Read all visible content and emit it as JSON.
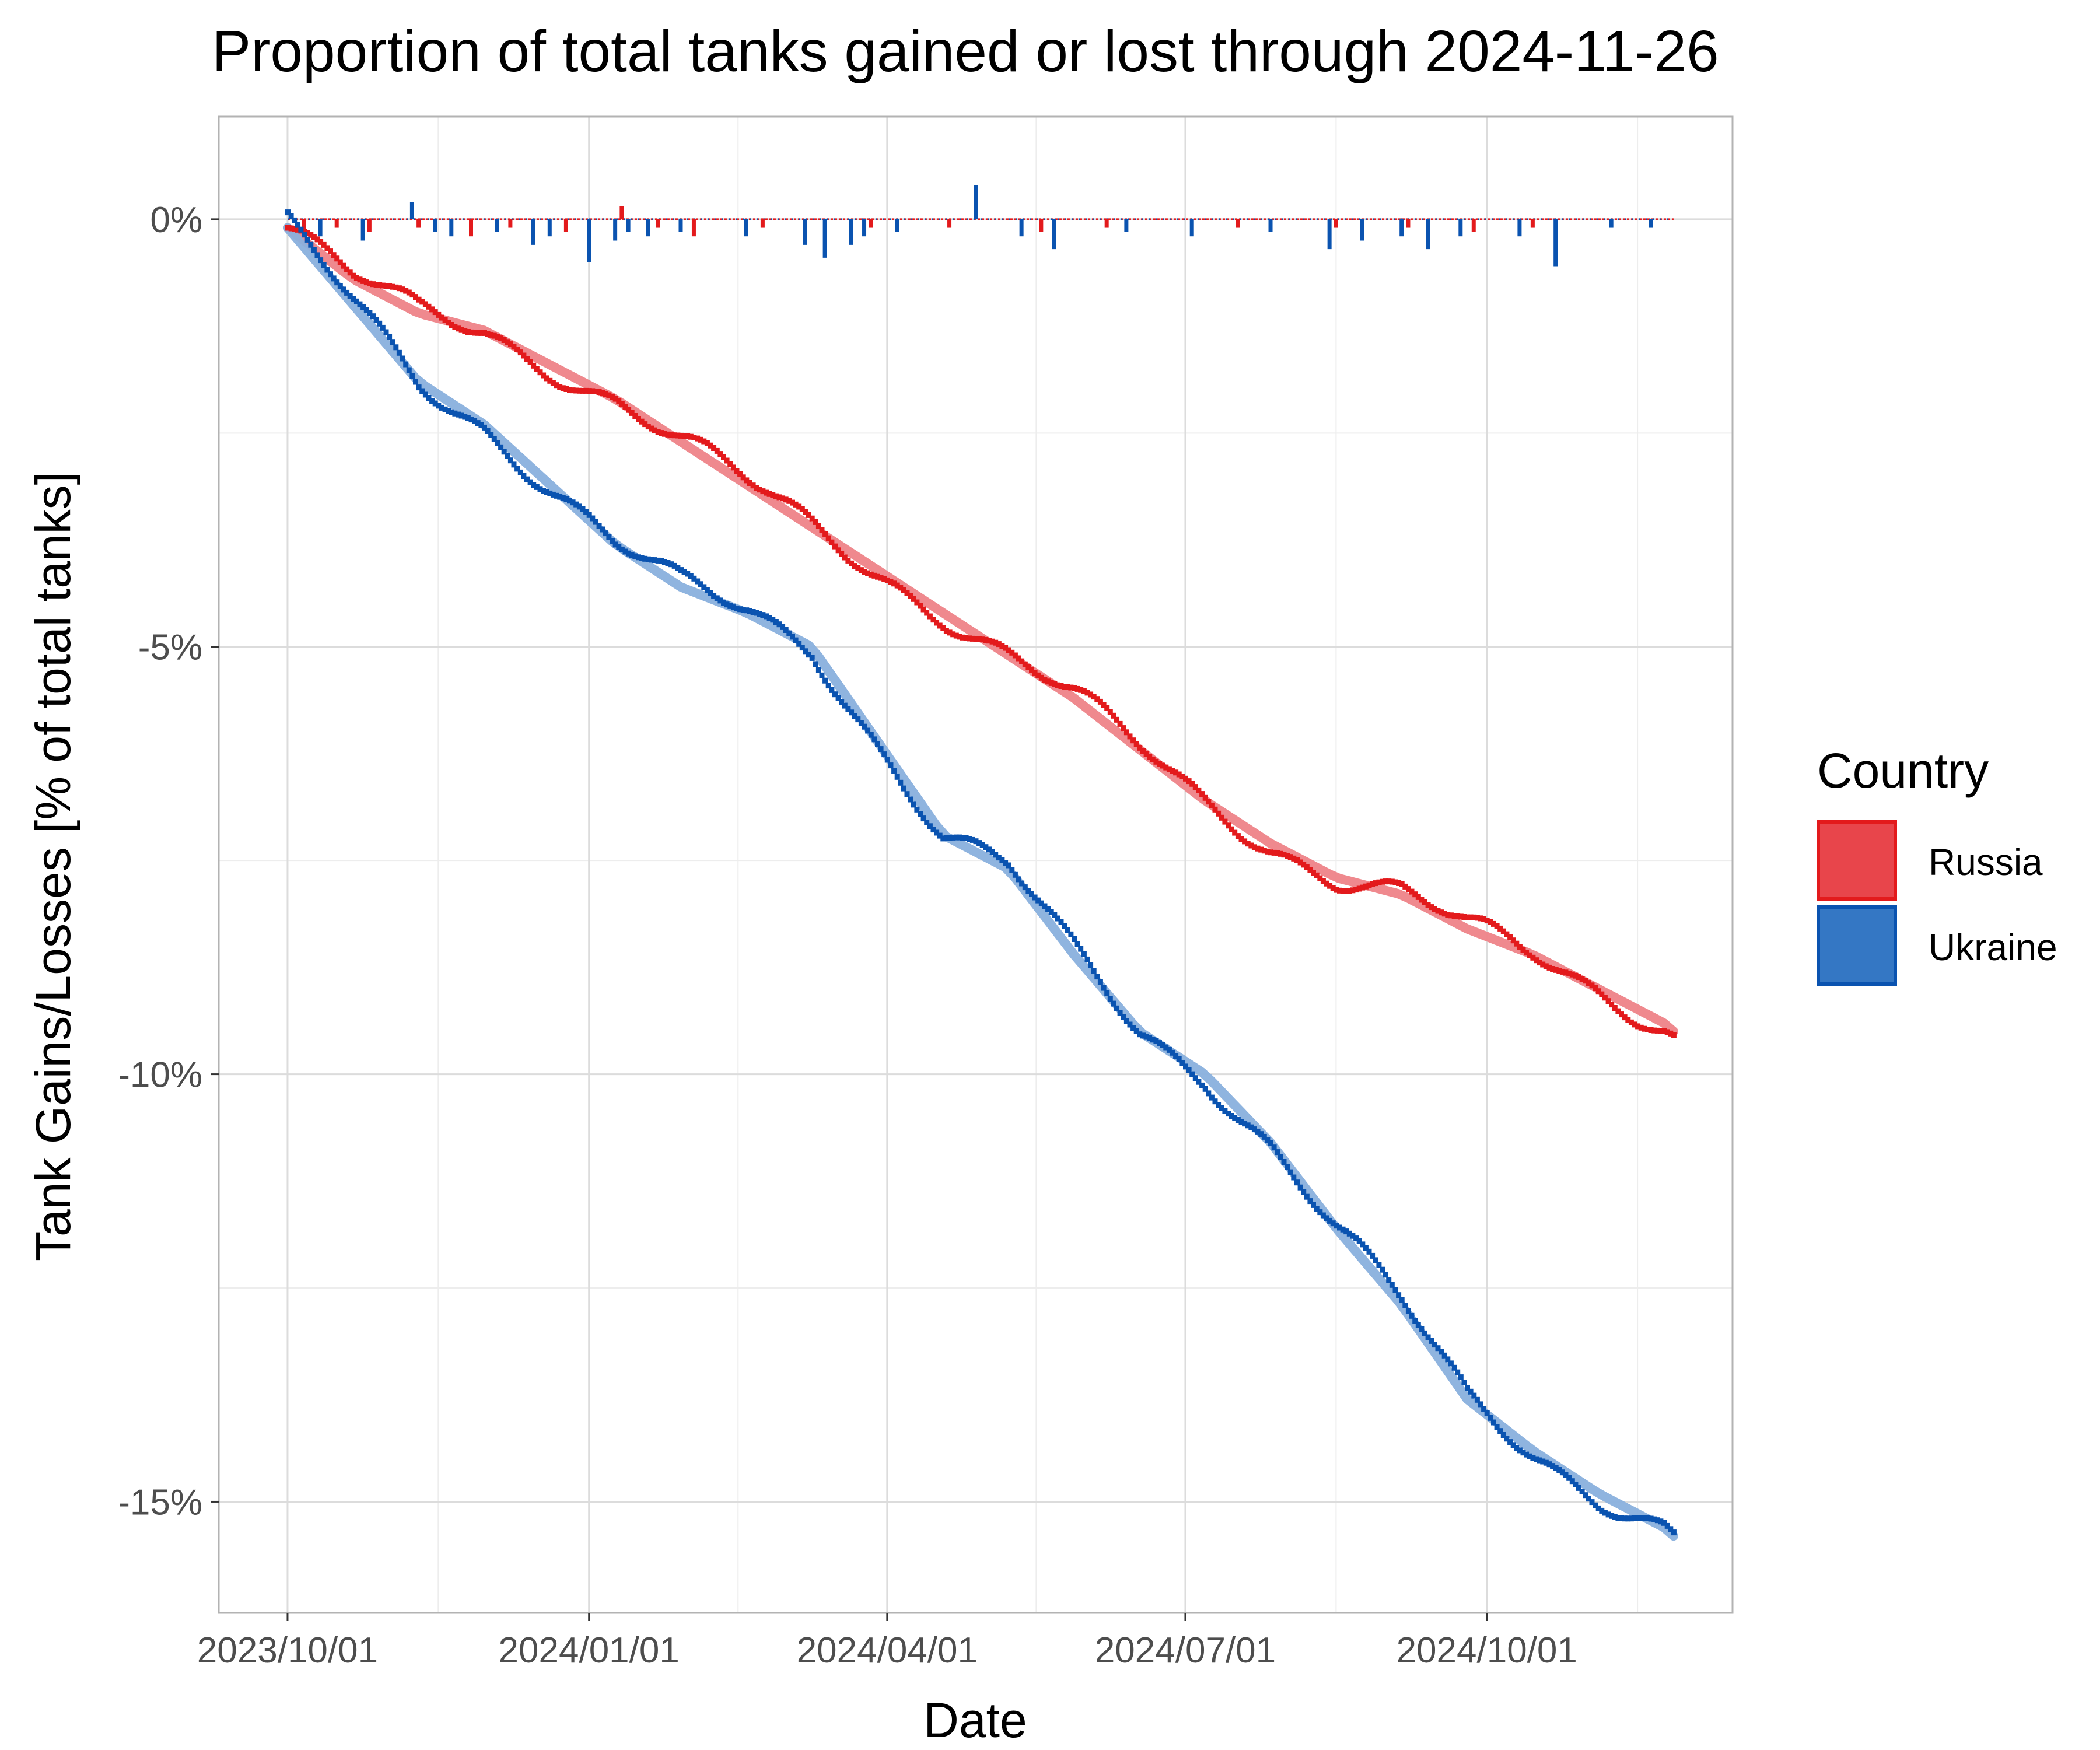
{
  "chart_data": {
    "type": "line",
    "title": "Proportion of total tanks gained or lost through 2024-11-26",
    "xlabel": "Date",
    "ylabel": "Tank Gains/Losses [% of total tanks]",
    "x_ticks": [
      "2023/10/01",
      "2024/01/01",
      "2024/04/01",
      "2024/07/01",
      "2024/10/01"
    ],
    "x_tick_days": [
      0,
      92,
      183,
      274,
      366
    ],
    "x_range_days": [
      -21,
      441
    ],
    "y_ticks": [
      0,
      -5,
      -10,
      -15
    ],
    "y_tick_labels": [
      "0%",
      "-5%",
      "-10%",
      "-15%"
    ],
    "y_range": [
      -16.3,
      1.2
    ],
    "grid": true,
    "legend": {
      "title": "Country",
      "position": "right",
      "entries": [
        {
          "label": "Russia",
          "fill": "#E8454B",
          "border": "#E31A1C"
        },
        {
          "label": "Ukraine",
          "fill": "#3477C4",
          "border": "#0A53B0"
        }
      ]
    },
    "colors": {
      "russia": "#E31A1C",
      "ukraine": "#0A53B0",
      "russia_smooth": "#EE8388",
      "ukraine_smooth": "#89B0DD"
    },
    "series": [
      {
        "name": "Russia",
        "description": "Cumulative proportion of total tanks (%) by day since 2023/10/01",
        "x_days": [
          0,
          20,
          40,
          60,
          80,
          100,
          120,
          140,
          160,
          180,
          200,
          220,
          240,
          260,
          280,
          300,
          320,
          340,
          360,
          380,
          400,
          420,
          423
        ],
        "values": [
          -0.1,
          -0.7,
          -1.1,
          -1.3,
          -1.7,
          -2.1,
          -2.6,
          -3.1,
          -3.6,
          -4.1,
          -4.6,
          -5.1,
          -5.6,
          -6.2,
          -6.8,
          -7.3,
          -7.7,
          -7.9,
          -8.3,
          -8.6,
          -9.0,
          -9.4,
          -9.5
        ]
      },
      {
        "name": "Ukraine",
        "description": "Cumulative proportion of total tanks (%) by day since 2023/10/01",
        "x_days": [
          0,
          20,
          40,
          60,
          80,
          100,
          120,
          140,
          160,
          180,
          200,
          220,
          240,
          260,
          280,
          300,
          320,
          340,
          360,
          380,
          400,
          420,
          423
        ],
        "values": [
          -0.1,
          -1.0,
          -1.9,
          -2.4,
          -3.1,
          -3.8,
          -4.3,
          -4.6,
          -5.0,
          -6.1,
          -7.2,
          -7.6,
          -8.6,
          -9.5,
          -10.0,
          -10.8,
          -11.8,
          -12.7,
          -13.8,
          -14.4,
          -14.9,
          -15.3,
          -15.4
        ]
      }
    ],
    "daily_bars_note": "Daily gains/losses shown as small bars around 0%; positive spikes (captured tanks) and negative spikes (losses).",
    "daily_bars": [
      {
        "series": "Ukraine",
        "x_days": [
          10,
          23,
          38,
          45,
          50,
          56,
          64,
          75,
          80,
          92,
          100,
          104,
          110,
          120,
          140,
          158,
          164,
          172,
          176,
          186,
          210,
          224,
          234,
          256,
          276,
          300,
          318,
          328,
          340,
          348,
          358,
          376,
          387,
          404,
          416
        ],
        "values": [
          -0.2,
          -0.25,
          0.2,
          -0.15,
          -0.2,
          -0.1,
          -0.15,
          -0.3,
          -0.2,
          -0.5,
          -0.25,
          -0.15,
          -0.2,
          -0.15,
          -0.2,
          -0.3,
          -0.45,
          -0.3,
          -0.2,
          -0.15,
          0.4,
          -0.2,
          -0.35,
          -0.15,
          -0.2,
          -0.15,
          -0.35,
          -0.25,
          -0.2,
          -0.35,
          -0.2,
          -0.2,
          -0.55,
          -0.1,
          -0.1
        ]
      },
      {
        "series": "Russia",
        "x_days": [
          5,
          15,
          25,
          40,
          56,
          68,
          85,
          102,
          113,
          124,
          145,
          178,
          202,
          230,
          250,
          290,
          320,
          342,
          362,
          380
        ],
        "values": [
          -0.15,
          -0.1,
          -0.15,
          -0.1,
          -0.2,
          -0.1,
          -0.15,
          0.15,
          -0.1,
          -0.2,
          -0.1,
          -0.1,
          -0.1,
          -0.15,
          -0.1,
          -0.1,
          -0.1,
          -0.1,
          -0.15,
          -0.1
        ]
      }
    ]
  }
}
